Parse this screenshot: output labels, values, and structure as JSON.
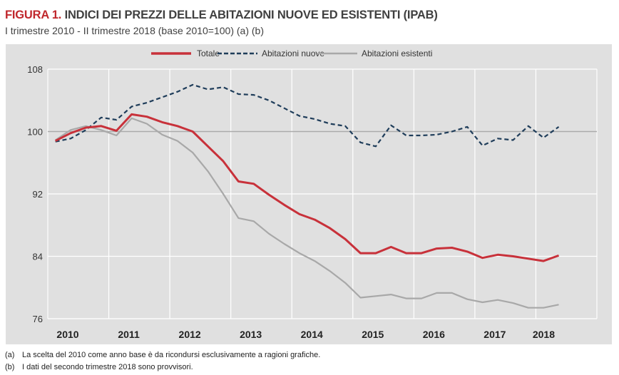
{
  "title": {
    "prefix": "FIGURA 1.",
    "text": " INDICI DEI PREZZI DELLE ABITAZIONI NUOVE ED ESISTENTI (IPAB)"
  },
  "subtitle": "I trimestre 2010 - II trimestre 2018 (base 2010=100) (a) (b)",
  "footnotes": [
    {
      "key": "(a)",
      "text": "La scelta del 2010 come anno base è da ricondursi esclusivamente a ragioni grafiche."
    },
    {
      "key": "(b)",
      "text": "I dati del secondo trimestre 2018 sono provvisori."
    }
  ],
  "chart_data": {
    "type": "line",
    "x_unit": "quarter",
    "x_start": "2010 Q1",
    "x_end": "2018 Q2",
    "x_tick_labels": [
      "2010",
      "2011",
      "2012",
      "2013",
      "2014",
      "2015",
      "2016",
      "2017",
      "2018"
    ],
    "y_ticks": [
      76,
      84,
      92,
      100,
      108
    ],
    "ylim": [
      76,
      108
    ],
    "reference_line": 100,
    "grid": true,
    "legend_placement": "top",
    "series": [
      {
        "name": "Totale",
        "color": "#c8313a",
        "style": "solid",
        "values": [
          98.8,
          99.8,
          100.5,
          100.7,
          100.1,
          102.2,
          101.9,
          101.2,
          100.7,
          100.0,
          98.1,
          96.2,
          93.6,
          93.3,
          91.9,
          90.6,
          89.4,
          88.7,
          87.6,
          86.2,
          84.4,
          84.4,
          85.2,
          84.4,
          84.4,
          85.0,
          85.1,
          84.6,
          83.8,
          84.2,
          84.0,
          83.7,
          83.4,
          84.1
        ]
      },
      {
        "name": "Abitazioni nuove",
        "color": "#1f3d5a",
        "style": "dashed",
        "values": [
          98.7,
          99.1,
          100.2,
          101.8,
          101.5,
          103.2,
          103.7,
          104.4,
          105.1,
          106.0,
          105.4,
          105.7,
          104.8,
          104.7,
          104.0,
          103.0,
          102.0,
          101.6,
          101.0,
          100.7,
          98.6,
          98.1,
          100.8,
          99.5,
          99.5,
          99.6,
          100.0,
          100.6,
          98.2,
          99.1,
          98.9,
          100.7,
          99.2,
          100.6
        ]
      },
      {
        "name": "Abitazioni esistenti",
        "color": "#a8a8a8",
        "style": "solid",
        "values": [
          98.9,
          100.2,
          100.7,
          100.2,
          99.5,
          101.7,
          101.0,
          99.6,
          98.8,
          97.3,
          94.9,
          92.0,
          88.9,
          88.5,
          86.9,
          85.6,
          84.4,
          83.4,
          82.1,
          80.6,
          78.7,
          78.9,
          79.1,
          78.6,
          78.6,
          79.3,
          79.3,
          78.5,
          78.1,
          78.4,
          78.0,
          77.4,
          77.4,
          77.8
        ]
      }
    ]
  }
}
